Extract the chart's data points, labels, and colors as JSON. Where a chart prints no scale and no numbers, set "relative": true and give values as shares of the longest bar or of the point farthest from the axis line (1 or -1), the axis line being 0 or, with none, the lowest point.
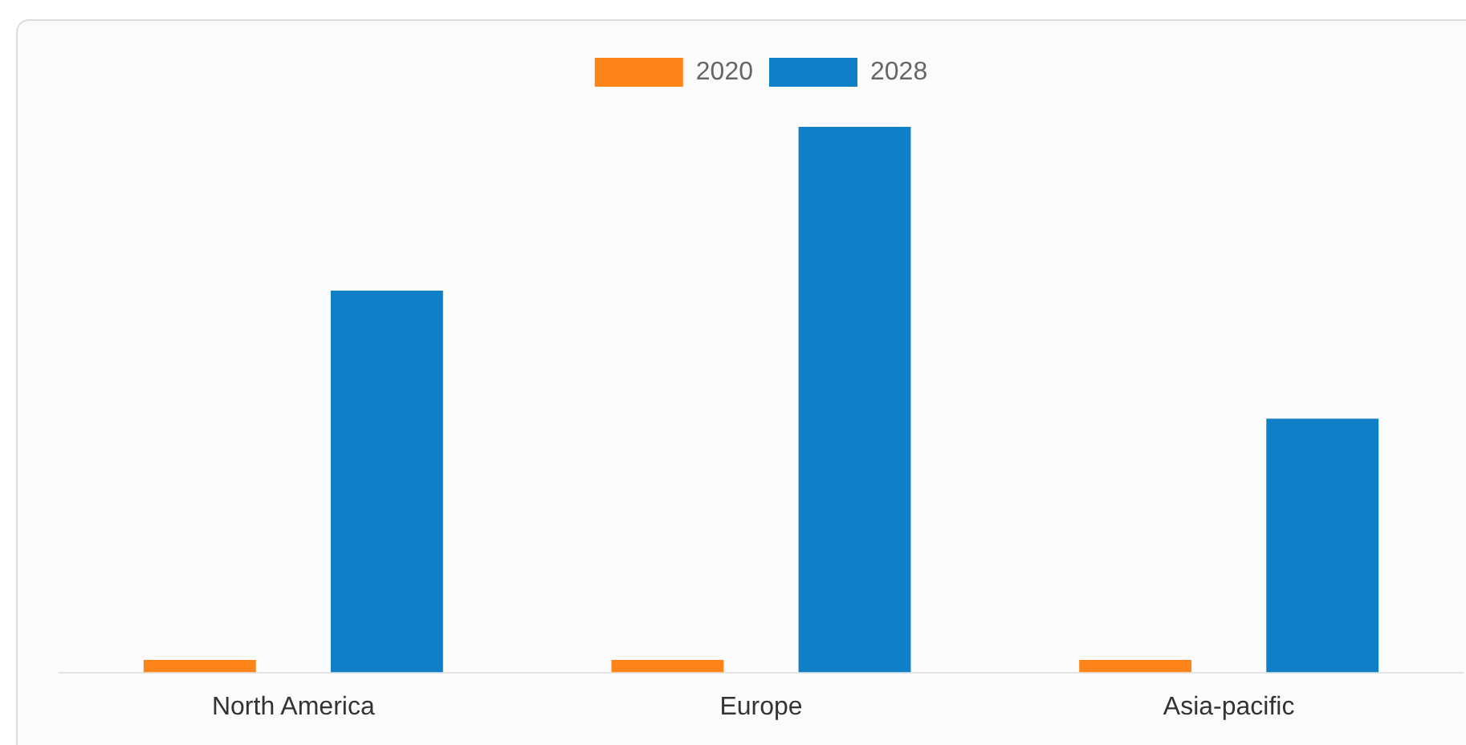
{
  "chart_data": {
    "type": "bar",
    "relative": true,
    "legend": "top",
    "categories": [
      "North America",
      "Europe",
      "Asia-pacific"
    ],
    "series": [
      {
        "name": "2020",
        "color": "#fd8418",
        "values": [
          0.023,
          0.023,
          0.023
        ]
      },
      {
        "name": "2028",
        "color": "#0f80c8",
        "values": [
          0.7,
          1,
          0.465
        ]
      }
    ]
  }
}
